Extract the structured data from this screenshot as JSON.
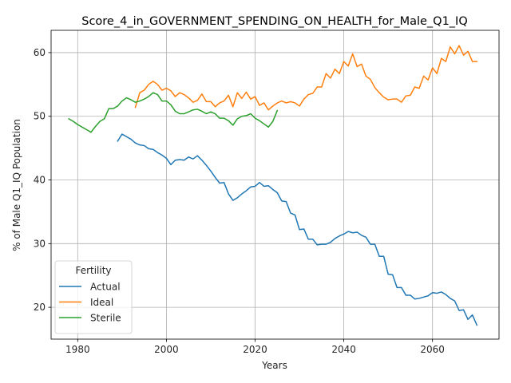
{
  "chart_data": {
    "type": "line",
    "title": "Score_4_in_GOVERNMENT_SPENDING_ON_HEALTH_for_Male_Q1_IQ",
    "xlabel": "Years",
    "ylabel": "% of Male Q1_IQ Population",
    "xlim": [
      1974,
      2075
    ],
    "ylim": [
      15,
      63.5
    ],
    "xticks": [
      1980,
      2000,
      2020,
      2040,
      2060
    ],
    "yticks": [
      20,
      30,
      40,
      50,
      60
    ],
    "grid": true,
    "legend": {
      "title": "Fertility",
      "position": "lower-left"
    },
    "series": [
      {
        "name": "Actual",
        "color": "#1f77b4",
        "x": [
          1989,
          1990,
          1991,
          1992,
          1993,
          1994,
          1995,
          1996,
          1997,
          1998,
          1999,
          2000,
          2001,
          2002,
          2003,
          2004,
          2005,
          2006,
          2007,
          2008,
          2009,
          2010,
          2011,
          2012,
          2013,
          2014,
          2015,
          2016,
          2017,
          2018,
          2019,
          2020,
          2021,
          2022,
          2023,
          2024,
          2025,
          2026,
          2027,
          2028,
          2029,
          2030,
          2031,
          2032,
          2033,
          2034,
          2035,
          2036,
          2037,
          2038,
          2039,
          2040,
          2041,
          2042,
          2043,
          2044,
          2045,
          2046,
          2047,
          2048,
          2049,
          2050,
          2051,
          2052,
          2053,
          2054,
          2055,
          2056,
          2057,
          2058,
          2059,
          2060,
          2061,
          2062,
          2063,
          2064,
          2065,
          2066,
          2067,
          2068,
          2069,
          2070
        ],
        "y": [
          46.1,
          47.2,
          46.8,
          46.4,
          45.8,
          45.5,
          45.4,
          44.9,
          44.8,
          44.3,
          43.9,
          43.4,
          42.4,
          43.1,
          43.2,
          43.1,
          43.6,
          43.3,
          43.8,
          43.1,
          42.3,
          41.4,
          40.4,
          39.5,
          39.6,
          37.8,
          36.8,
          37.2,
          37.8,
          38.3,
          38.9,
          39.0,
          39.6,
          39.0,
          39.1,
          38.5,
          38.0,
          36.7,
          36.6,
          34.8,
          34.5,
          32.2,
          32.3,
          30.7,
          30.7,
          29.8,
          29.9,
          29.9,
          30.2,
          30.8,
          31.2,
          31.5,
          31.9,
          31.7,
          31.8,
          31.3,
          31.0,
          29.9,
          29.9,
          28.0,
          28.0,
          25.2,
          25.1,
          23.1,
          23.1,
          21.9,
          21.9,
          21.3,
          21.4,
          21.6,
          21.8,
          22.3,
          22.2,
          22.4,
          22.0,
          21.4,
          21.0,
          19.5,
          19.6,
          18.1,
          18.8,
          17.2
        ]
      },
      {
        "name": "Ideal",
        "color": "#ff7f0e",
        "x": [
          1993,
          1994,
          1995,
          1996,
          1997,
          1998,
          1999,
          2000,
          2001,
          2002,
          2003,
          2004,
          2005,
          2006,
          2007,
          2008,
          2009,
          2010,
          2011,
          2012,
          2013,
          2014,
          2015,
          2016,
          2017,
          2018,
          2019,
          2020,
          2021,
          2022,
          2023,
          2024,
          2025,
          2026,
          2027,
          2028,
          2029,
          2030,
          2031,
          2032,
          2033,
          2034,
          2035,
          2036,
          2037,
          2038,
          2039,
          2040,
          2041,
          2042,
          2043,
          2044,
          2045,
          2046,
          2047,
          2048,
          2049,
          2050,
          2051,
          2052,
          2053,
          2054,
          2055,
          2056,
          2057,
          2058,
          2059,
          2060,
          2061,
          2062,
          2063,
          2064,
          2065,
          2066,
          2067,
          2068,
          2069,
          2070
        ],
        "y": [
          51.4,
          53.7,
          54.1,
          55.0,
          55.5,
          55.0,
          54.1,
          54.4,
          54.0,
          53.1,
          53.7,
          53.4,
          52.9,
          52.2,
          52.5,
          53.5,
          52.3,
          52.3,
          51.5,
          52.1,
          52.4,
          53.3,
          51.5,
          53.7,
          52.8,
          53.8,
          52.7,
          53.1,
          51.7,
          52.1,
          51.0,
          51.6,
          52.1,
          52.4,
          52.1,
          52.3,
          52.1,
          51.6,
          52.7,
          53.4,
          53.6,
          54.6,
          54.6,
          56.7,
          56.0,
          57.4,
          56.7,
          58.6,
          57.9,
          59.8,
          57.8,
          58.2,
          56.3,
          55.8,
          54.5,
          53.7,
          53.0,
          52.6,
          52.7,
          52.7,
          52.2,
          53.2,
          53.3,
          54.6,
          54.4,
          56.3,
          55.7,
          57.6,
          56.7,
          59.1,
          58.6,
          60.9,
          59.8,
          61.1,
          59.6,
          60.2,
          58.6,
          58.6
        ]
      },
      {
        "name": "Sterile",
        "color": "#2ca02c",
        "x": [
          1978,
          1979,
          1980,
          1981,
          1982,
          1983,
          1984,
          1985,
          1986,
          1987,
          1988,
          1989,
          1990,
          1991,
          1992,
          1993,
          1994,
          1995,
          1996,
          1997,
          1998,
          1999,
          2000,
          2001,
          2002,
          2003,
          2004,
          2005,
          2006,
          2007,
          2008,
          2009,
          2010,
          2011,
          2012,
          2013,
          2014,
          2015,
          2016,
          2017,
          2018,
          2019,
          2020,
          2021,
          2022,
          2023,
          2024,
          2025
        ],
        "y": [
          49.6,
          49.2,
          48.7,
          48.3,
          47.9,
          47.5,
          48.4,
          49.2,
          49.6,
          51.2,
          51.2,
          51.6,
          52.4,
          52.9,
          52.6,
          52.2,
          52.4,
          52.7,
          53.1,
          53.7,
          53.4,
          52.4,
          52.4,
          51.8,
          50.8,
          50.4,
          50.4,
          50.7,
          51.0,
          51.1,
          50.8,
          50.4,
          50.7,
          50.4,
          49.7,
          49.7,
          49.3,
          48.6,
          49.6,
          50.0,
          50.1,
          50.4,
          49.7,
          49.3,
          48.8,
          48.3,
          49.2,
          50.9
        ]
      }
    ]
  }
}
